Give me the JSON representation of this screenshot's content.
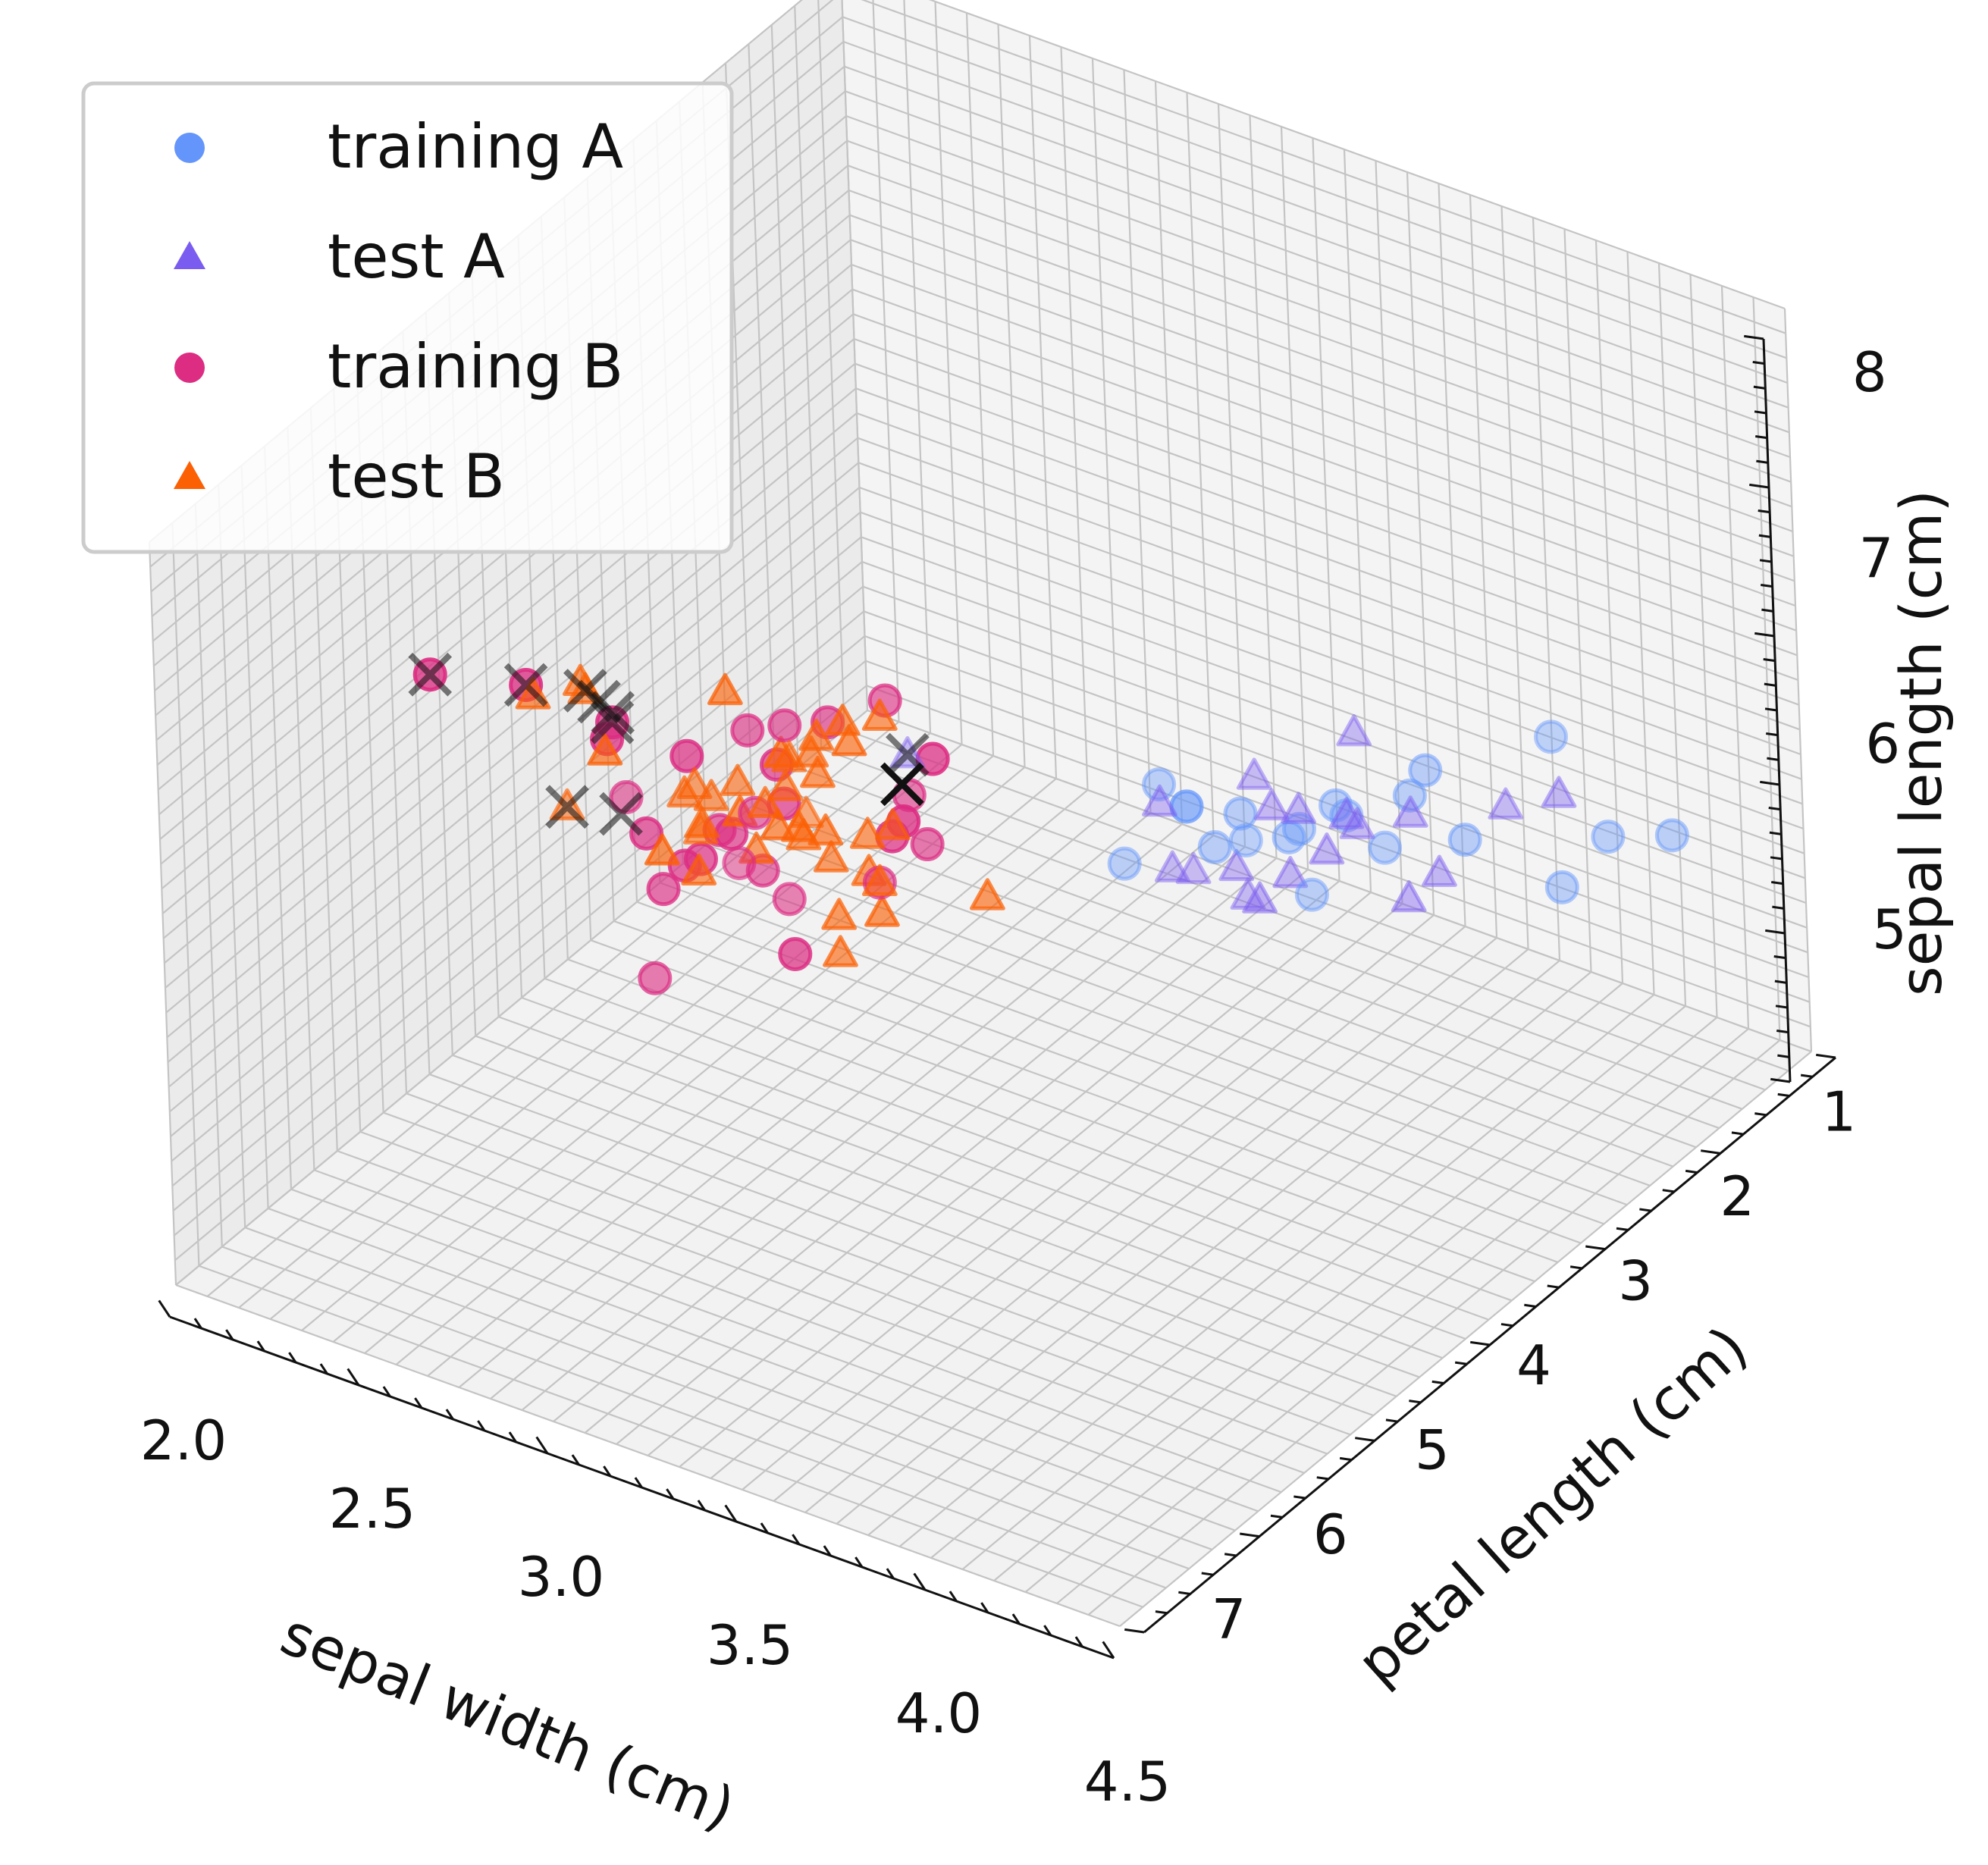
{
  "chart_data": {
    "type": "scatter",
    "projection": "3d",
    "grid": true,
    "legend_position": "top-left",
    "axes": {
      "x": {
        "label": "sepal width (cm)",
        "range": [
          2.0,
          4.5
        ],
        "ticks": [
          "2.0",
          "2.5",
          "3.0",
          "3.5",
          "4.0",
          "4.5"
        ]
      },
      "y": {
        "label": "petal length (cm)",
        "range": [
          0.6,
          7.4
        ],
        "ticks": [
          "1",
          "2",
          "3",
          "4",
          "5",
          "6",
          "7"
        ]
      },
      "z": {
        "label": "sepal length (cm)",
        "range": [
          4.2,
          8.2
        ],
        "ticks": [
          "5",
          "6",
          "7",
          "8"
        ]
      }
    },
    "colors": {
      "training_A": "#6495fa",
      "test_A": "#7b5cf0",
      "training_B": "#dc2d82",
      "test_B": "#fb6005",
      "marker_x": "#111111"
    },
    "series": [
      {
        "name": "training A",
        "marker": "circle",
        "color": "#6495fa",
        "points": [
          [
            3.5,
            1.4,
            5.1
          ],
          [
            3.0,
            1.4,
            4.9
          ],
          [
            3.2,
            1.3,
            4.7
          ],
          [
            3.6,
            1.4,
            5.0
          ],
          [
            3.9,
            1.7,
            5.4
          ],
          [
            3.4,
            1.4,
            4.6
          ],
          [
            3.4,
            1.5,
            5.0
          ],
          [
            2.9,
            1.4,
            4.4
          ],
          [
            3.1,
            1.5,
            4.9
          ],
          [
            3.7,
            1.5,
            5.4
          ],
          [
            4.0,
            1.2,
            5.8
          ],
          [
            4.4,
            1.5,
            5.7
          ],
          [
            3.8,
            1.7,
            5.7
          ],
          [
            3.3,
            1.7,
            5.1
          ],
          [
            3.4,
            1.6,
            5.0
          ],
          [
            3.5,
            1.5,
            5.2
          ],
          [
            3.2,
            1.6,
            4.8
          ],
          [
            4.1,
            1.5,
            5.2
          ],
          [
            4.2,
            1.4,
            5.5
          ],
          [
            3.1,
            1.5,
            4.9
          ]
        ]
      },
      {
        "name": "test A",
        "marker": "triangle",
        "color": "#7b5cf0",
        "points": [
          [
            3.0,
            1.1,
            4.3
          ],
          [
            3.4,
            1.6,
            4.8
          ],
          [
            3.0,
            1.4,
            4.8
          ],
          [
            3.5,
            1.3,
            5.5
          ],
          [
            3.2,
            1.2,
            5.0
          ],
          [
            3.5,
            1.4,
            5.1
          ],
          [
            3.8,
            1.9,
            5.1
          ],
          [
            3.0,
            1.3,
            4.4
          ],
          [
            3.4,
            1.5,
            5.1
          ],
          [
            3.5,
            1.3,
            5.0
          ],
          [
            2.3,
            1.3,
            4.5
          ],
          [
            3.2,
            1.3,
            4.4
          ],
          [
            3.5,
            1.6,
            5.0
          ],
          [
            3.8,
            1.6,
            5.1
          ],
          [
            3.2,
            1.4,
            4.6
          ],
          [
            3.7,
            1.5,
            5.3
          ],
          [
            3.3,
            1.4,
            5.0
          ],
          [
            3.9,
            1.3,
            5.4
          ],
          [
            3.4,
            1.9,
            4.8
          ],
          [
            4.1,
            1.5,
            5.7
          ]
        ]
      },
      {
        "name": "training B",
        "marker": "circle",
        "color": "#dc2d82",
        "points": [
          [
            3.2,
            4.7,
            7.0
          ],
          [
            3.2,
            4.5,
            6.4
          ],
          [
            3.1,
            4.9,
            6.9
          ],
          [
            2.3,
            4.0,
            5.5
          ],
          [
            2.8,
            4.6,
            6.5
          ],
          [
            2.8,
            4.5,
            5.7
          ],
          [
            3.3,
            4.7,
            6.3
          ],
          [
            2.4,
            3.3,
            4.9
          ],
          [
            2.9,
            4.6,
            6.6
          ],
          [
            2.7,
            3.9,
            5.2
          ],
          [
            3.3,
            6.0,
            6.3
          ],
          [
            2.7,
            5.1,
            5.8
          ],
          [
            3.0,
            5.9,
            7.1
          ],
          [
            2.9,
            5.6,
            6.3
          ],
          [
            3.0,
            5.8,
            6.5
          ],
          [
            3.0,
            6.6,
            7.6
          ],
          [
            2.5,
            4.5,
            4.9
          ],
          [
            2.9,
            6.3,
            7.3
          ],
          [
            3.6,
            6.1,
            7.2
          ],
          [
            3.8,
            6.7,
            7.7
          ],
          [
            2.6,
            6.9,
            7.7
          ],
          [
            3.2,
            5.7,
            6.9
          ],
          [
            2.8,
            6.7,
            7.7
          ],
          [
            3.0,
            5.5,
            6.5
          ],
          [
            2.8,
            4.9,
            6.1
          ],
          [
            3.0,
            4.1,
            5.6
          ],
          [
            2.7,
            4.2,
            5.8
          ],
          [
            3.1,
            5.4,
            6.9
          ],
          [
            3.8,
            6.4,
            7.9
          ],
          [
            2.8,
            5.6,
            6.4
          ]
        ]
      },
      {
        "name": "test B",
        "marker": "triangle",
        "color": "#fb6005",
        "points": [
          [
            2.0,
            3.5,
            5.0
          ],
          [
            3.0,
            4.2,
            5.9
          ],
          [
            2.2,
            4.0,
            6.0
          ],
          [
            2.9,
            4.7,
            6.1
          ],
          [
            2.9,
            3.6,
            5.6
          ],
          [
            3.1,
            4.4,
            6.7
          ],
          [
            3.0,
            4.5,
            5.6
          ],
          [
            2.7,
            4.1,
            5.8
          ],
          [
            2.2,
            4.5,
            6.2
          ],
          [
            2.5,
            3.9,
            5.6
          ],
          [
            3.2,
            4.8,
            5.9
          ],
          [
            2.8,
            4.0,
            6.1
          ],
          [
            2.5,
            4.9,
            6.3
          ],
          [
            2.8,
            4.7,
            6.1
          ],
          [
            2.9,
            4.3,
            6.4
          ],
          [
            3.0,
            4.4,
            6.6
          ],
          [
            2.8,
            4.8,
            6.8
          ],
          [
            3.0,
            5.0,
            6.7
          ],
          [
            2.9,
            4.5,
            6.0
          ],
          [
            2.6,
            3.5,
            5.7
          ],
          [
            2.4,
            3.8,
            5.5
          ],
          [
            2.4,
            3.7,
            5.5
          ],
          [
            2.7,
            3.9,
            5.8
          ],
          [
            2.7,
            5.1,
            6.0
          ],
          [
            3.0,
            4.5,
            5.4
          ],
          [
            3.4,
            4.5,
            6.0
          ],
          [
            3.1,
            4.7,
            6.7
          ],
          [
            2.3,
            4.4,
            6.3
          ],
          [
            3.0,
            4.1,
            5.6
          ],
          [
            2.5,
            4.0,
            5.5
          ],
          [
            2.6,
            4.4,
            5.5
          ],
          [
            3.0,
            4.6,
            6.1
          ],
          [
            2.6,
            4.0,
            5.8
          ],
          [
            2.3,
            3.3,
            5.0
          ],
          [
            2.7,
            4.2,
            5.6
          ],
          [
            3.0,
            4.2,
            5.7
          ],
          [
            2.9,
            4.2,
            5.7
          ],
          [
            2.9,
            4.3,
            6.2
          ],
          [
            2.5,
            3.0,
            5.1
          ],
          [
            2.8,
            4.1,
            5.7
          ]
        ]
      }
    ],
    "highlighted_x": [
      [
        2.3,
        1.3,
        4.5
      ],
      [
        2.0,
        3.5,
        5.0
      ],
      [
        2.2,
        3.7,
        5.2
      ],
      [
        2.2,
        4.0,
        6.0
      ],
      [
        2.25,
        4.05,
        6.0
      ],
      [
        2.3,
        4.1,
        6.0
      ],
      [
        2.6,
        6.9,
        7.7
      ],
      [
        2.8,
        6.7,
        7.7
      ],
      [
        3.0,
        6.6,
        7.6
      ],
      [
        3.8,
        6.7,
        7.9
      ]
    ],
    "highlighted_x_faded": [
      true,
      true,
      true,
      true,
      true,
      true,
      true,
      true,
      true,
      false
    ]
  }
}
